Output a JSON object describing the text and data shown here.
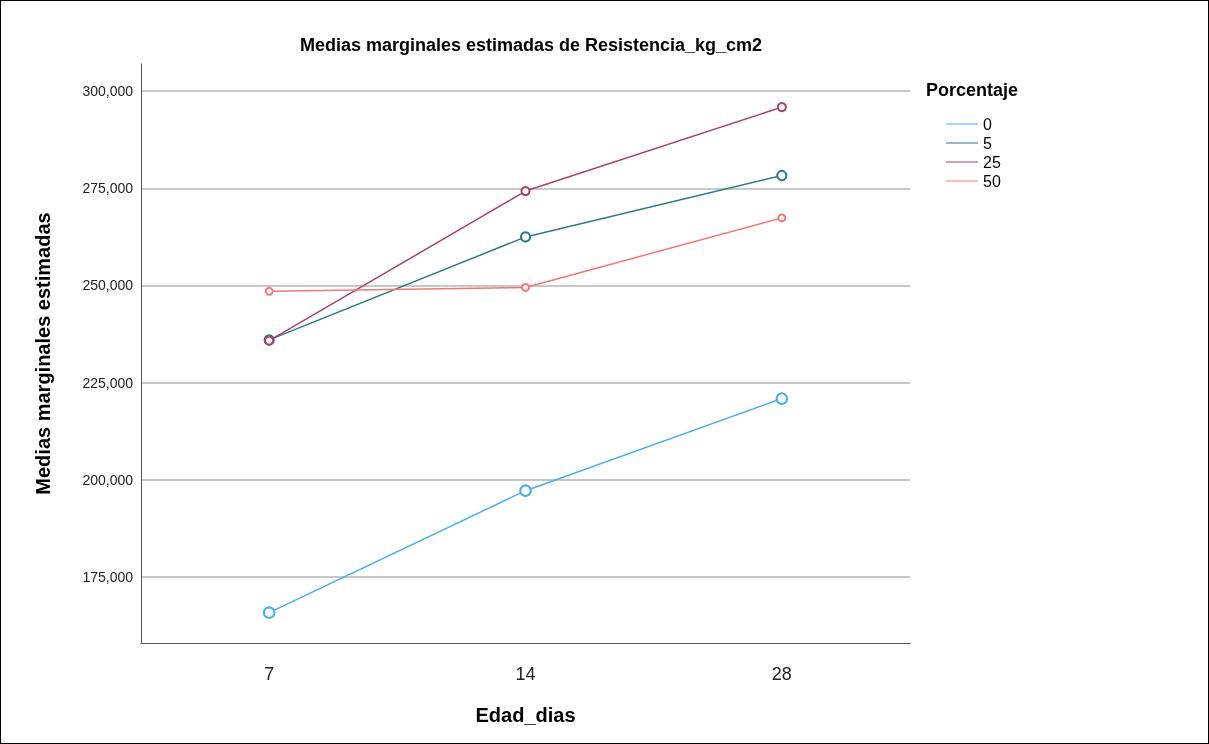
{
  "chart_data": {
    "type": "line",
    "title": "Medias marginales estimadas de Resistencia_kg_cm2",
    "xlabel": "Edad_dias",
    "ylabel": "Medias marginales estimadas",
    "legend_title": "Porcentaje",
    "categories": [
      "7",
      "14",
      "28"
    ],
    "series": [
      {
        "name": "0",
        "color": "#4aaeee",
        "values": [
          165800,
          197200,
          220900
        ]
      },
      {
        "name": "5",
        "color": "#2d7b7b",
        "values": [
          236000,
          262500,
          278300
        ]
      },
      {
        "name": "25",
        "color": "#a8436f",
        "values": [
          235800,
          274300,
          295900
        ]
      },
      {
        "name": "50",
        "color": "#f27777",
        "values": [
          248500,
          249500,
          267400
        ]
      }
    ],
    "ylim": [
      158000,
      307000
    ],
    "yticks": [
      {
        "value": 175000,
        "label": "175,000"
      },
      {
        "value": 200000,
        "label": "200,000"
      },
      {
        "value": 225000,
        "label": "225,000"
      },
      {
        "value": 250000,
        "label": "250,000"
      },
      {
        "value": 275000,
        "label": "275,000"
      },
      {
        "value": 300000,
        "label": "300,000"
      }
    ],
    "grid": "y",
    "legend": "top right",
    "marker": "circle",
    "line_style": "solid"
  }
}
